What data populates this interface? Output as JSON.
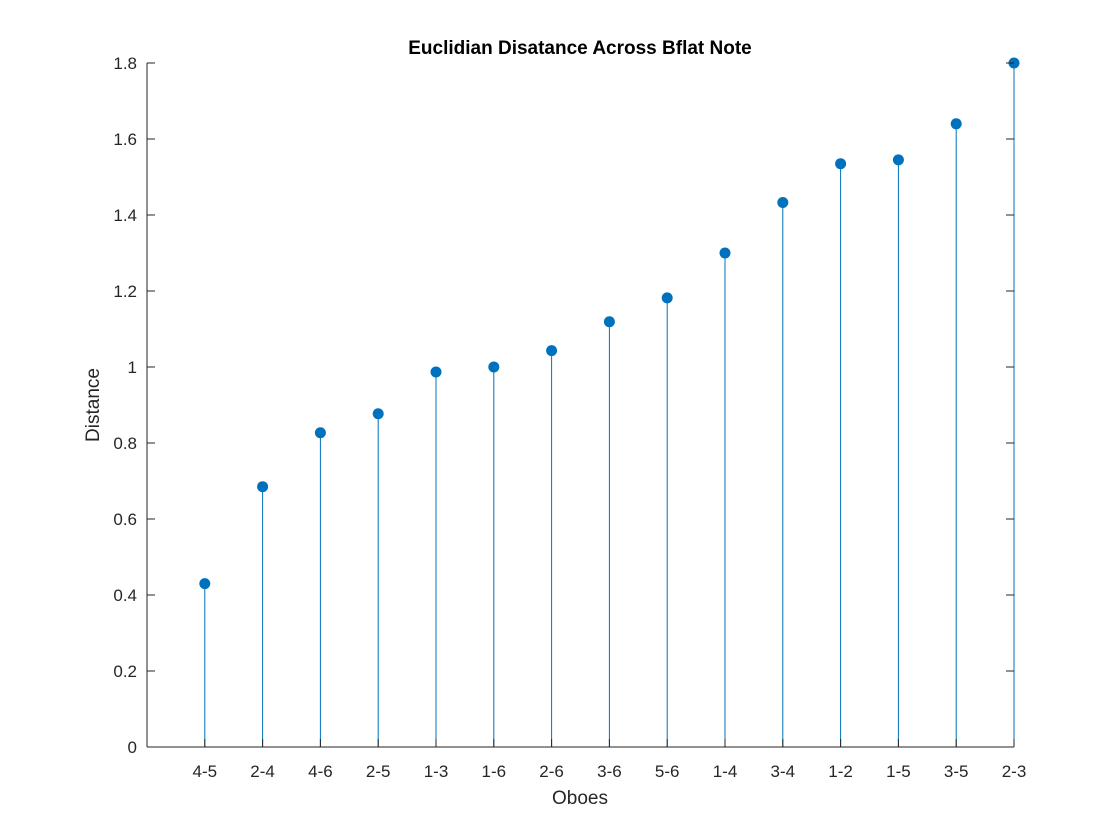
{
  "chart_data": {
    "type": "stem",
    "title": "Euclidian Disatance Across Bflat Note",
    "xlabel": "Oboes",
    "ylabel": "Distance",
    "categories": [
      "4-5",
      "2-4",
      "4-6",
      "2-5",
      "1-3",
      "1-6",
      "2-6",
      "3-6",
      "5-6",
      "1-4",
      "3-4",
      "1-2",
      "1-5",
      "3-5",
      "2-3"
    ],
    "values": [
      0.43,
      0.685,
      0.827,
      0.877,
      0.987,
      1.0,
      1.043,
      1.119,
      1.182,
      1.3,
      1.433,
      1.535,
      1.545,
      1.64,
      1.8
    ],
    "ylim": [
      0,
      1.8
    ],
    "yticks": [
      0,
      0.2,
      0.4,
      0.6,
      0.8,
      1,
      1.2,
      1.4,
      1.6,
      1.8
    ],
    "ytick_labels": [
      "0",
      "0.2",
      "0.4",
      "0.6",
      "0.8",
      "1",
      "1.2",
      "1.4",
      "1.6",
      "1.8"
    ],
    "grid": false,
    "color": "#0072BD"
  }
}
